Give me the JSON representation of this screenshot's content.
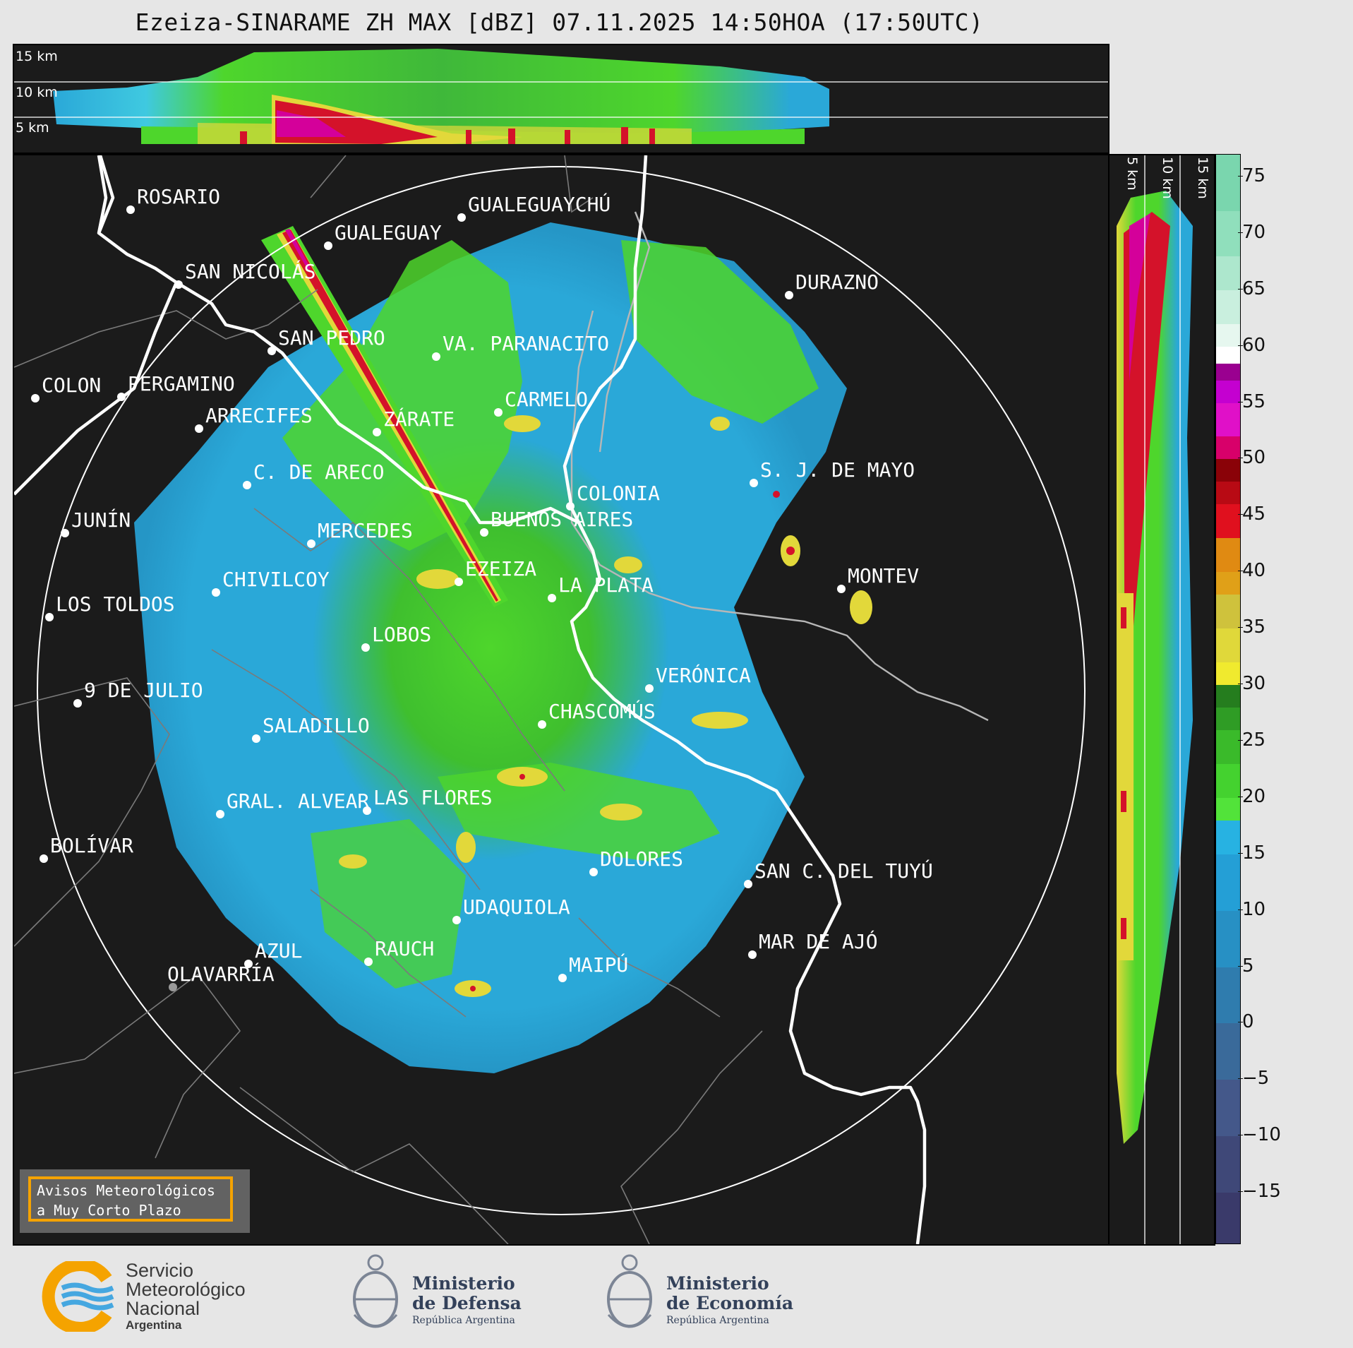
{
  "title": "Ezeiza-SINARAME ZH MAX [dBZ] 07.11.2025 14:50HOA (17:50UTC)",
  "height_labels": {
    "top": [
      "15 km",
      "10 km",
      "5 km"
    ],
    "side": [
      "5 km",
      "10 km",
      "15 km"
    ]
  },
  "colorbar": {
    "ticks": [
      "75",
      "70",
      "65",
      "60",
      "55",
      "50",
      "45",
      "40",
      "35",
      "30",
      "25",
      "20",
      "15",
      "10",
      "5",
      "0",
      "−5",
      "−10",
      "−15"
    ]
  },
  "cities": [
    {
      "name": "ROSARIO"
    },
    {
      "name": "GUALEGUAYCHÚ"
    },
    {
      "name": "GUALEGUAY"
    },
    {
      "name": "SAN NICOLÁS"
    },
    {
      "name": "DURAZNO"
    },
    {
      "name": "SAN PEDRO"
    },
    {
      "name": "VA. PARANACITO"
    },
    {
      "name": "COLON"
    },
    {
      "name": "PERGAMINO"
    },
    {
      "name": "CARMELO"
    },
    {
      "name": "ARRECIFES"
    },
    {
      "name": "ZÁRATE"
    },
    {
      "name": "S. J. DE MAYO"
    },
    {
      "name": "C. DE ARECO"
    },
    {
      "name": "COLONIA"
    },
    {
      "name": "JUNÍN"
    },
    {
      "name": "BUENOS AIRES"
    },
    {
      "name": "MERCEDES"
    },
    {
      "name": "MONTEV"
    },
    {
      "name": "EZEIZA"
    },
    {
      "name": "CHIVILCOY"
    },
    {
      "name": "LA PLATA"
    },
    {
      "name": "LOS TOLDOS"
    },
    {
      "name": "LOBOS"
    },
    {
      "name": "VERÓNICA"
    },
    {
      "name": "9 DE JULIO"
    },
    {
      "name": "CHASCOMÚS"
    },
    {
      "name": "SALADILLO"
    },
    {
      "name": "GRAL. ALVEAR"
    },
    {
      "name": "LAS FLORES"
    },
    {
      "name": "BOLÍVAR"
    },
    {
      "name": "DOLORES"
    },
    {
      "name": "SAN C. DEL TUYÚ"
    },
    {
      "name": "UDAQUIOLA"
    },
    {
      "name": "AZUL"
    },
    {
      "name": "RAUCH"
    },
    {
      "name": "MAR DE AJÓ"
    },
    {
      "name": "MAIPÚ"
    },
    {
      "name": "OLAVARRÍA"
    }
  ],
  "aviso": {
    "line1": "Avisos Meteorológicos",
    "line2": "a Muy Corto Plazo"
  },
  "logos": {
    "smn": {
      "l1": "Servicio",
      "l2": "Meteorológico",
      "l3": "Nacional",
      "l4": "Argentina"
    },
    "defensa": {
      "l1": "Ministerio",
      "l2": "de Defensa",
      "l3": "República Argentina"
    },
    "economia": {
      "l1": "Ministerio",
      "l2": "de Economía",
      "l3": "República Argentina"
    }
  },
  "colors": {
    "background": "#1b1b1b",
    "coast": "#ffffff",
    "radar_blue": "#2aa8d8",
    "radar_green": "#4ed62c",
    "radar_yellow": "#e2d83a",
    "radar_red": "#d4122a",
    "radar_magenta": "#d4009a"
  }
}
